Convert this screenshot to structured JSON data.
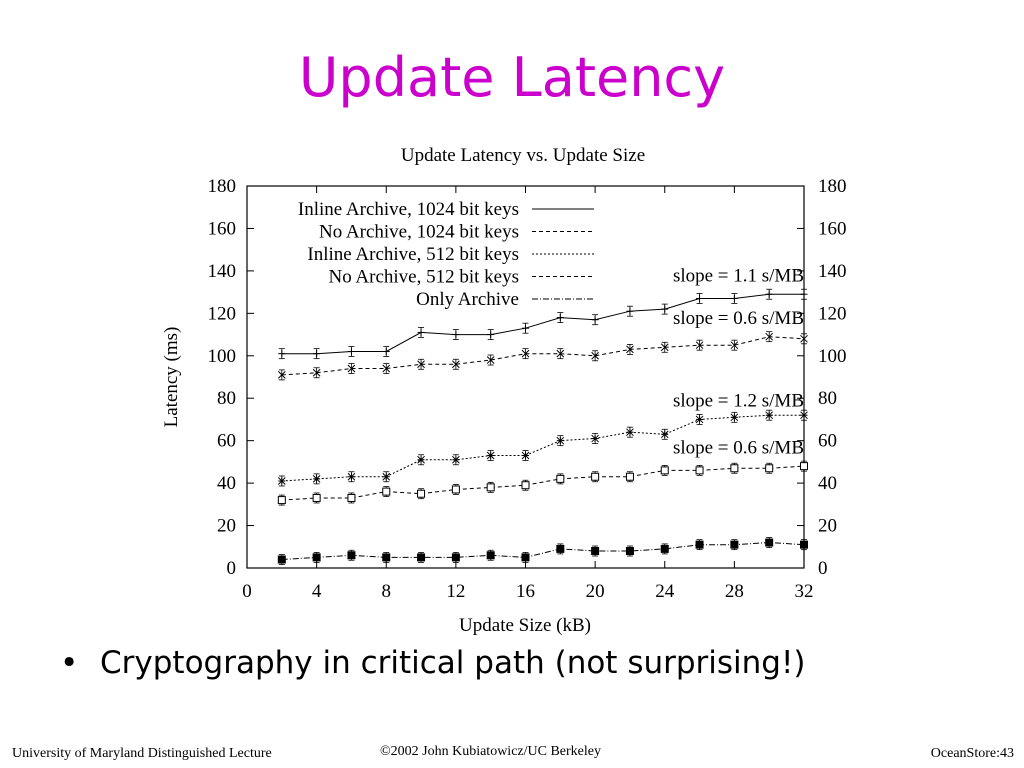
{
  "slide": {
    "title": "Update Latency",
    "bullet_symbol": "•",
    "bullet": "Cryptography in critical path (not surprising!)",
    "footer_left": "University of Maryland Distinguished Lecture",
    "footer_center": "©2002 John Kubiatowicz/UC Berkeley",
    "footer_right": "OceanStore:43"
  },
  "chart_data": {
    "type": "line",
    "title": "Update Latency vs. Update Size",
    "xlabel": "Update Size (kB)",
    "ylabel": "Latency (ms)",
    "xlim": [
      0,
      32
    ],
    "ylim": [
      0,
      180
    ],
    "xticks": [
      0,
      4,
      8,
      12,
      16,
      20,
      24,
      28,
      32
    ],
    "yticks": [
      0,
      20,
      40,
      60,
      80,
      100,
      120,
      140,
      160,
      180
    ],
    "grid": false,
    "legend_position": "top-left",
    "x": [
      2,
      4,
      6,
      8,
      10,
      12,
      14,
      16,
      18,
      20,
      22,
      24,
      26,
      28,
      30,
      32
    ],
    "series": [
      {
        "name": "Inline Archive, 1024 bit keys",
        "dash": "solid",
        "marker": "plus",
        "values": [
          101,
          101,
          102,
          102,
          111,
          110,
          110,
          113,
          118,
          117,
          121,
          122,
          127,
          127,
          129,
          129
        ]
      },
      {
        "name": "No Archive, 1024 bit keys",
        "dash": "dashed",
        "marker": "x",
        "values": [
          91,
          92,
          94,
          94,
          96,
          96,
          98,
          101,
          101,
          100,
          103,
          104,
          105,
          105,
          109,
          108
        ]
      },
      {
        "name": "Inline Archive, 512 bit keys",
        "dash": "dotted",
        "marker": "star",
        "values": [
          41,
          42,
          43,
          43,
          51,
          51,
          53,
          53,
          60,
          61,
          64,
          63,
          70,
          71,
          72,
          72
        ]
      },
      {
        "name": "No Archive, 512 bit keys",
        "dash": "dashed",
        "marker": "square",
        "values": [
          32,
          33,
          33,
          36,
          35,
          37,
          38,
          39,
          42,
          43,
          43,
          46,
          46,
          47,
          47,
          48
        ]
      },
      {
        "name": "Only Archive",
        "dash": "dashdot",
        "marker": "filled-square",
        "values": [
          4,
          5,
          6,
          5,
          5,
          5,
          6,
          5,
          9,
          8,
          8,
          9,
          11,
          11,
          12,
          11
        ]
      }
    ],
    "annotations": [
      {
        "text": "slope = 1.1 s/MB",
        "x": 32,
        "y": 135
      },
      {
        "text": "slope = 0.6 s/MB",
        "x": 32,
        "y": 115
      },
      {
        "text": "slope = 1.2 s/MB",
        "x": 32,
        "y": 76
      },
      {
        "text": "slope = 0.6 s/MB",
        "x": 32,
        "y": 54
      }
    ]
  }
}
